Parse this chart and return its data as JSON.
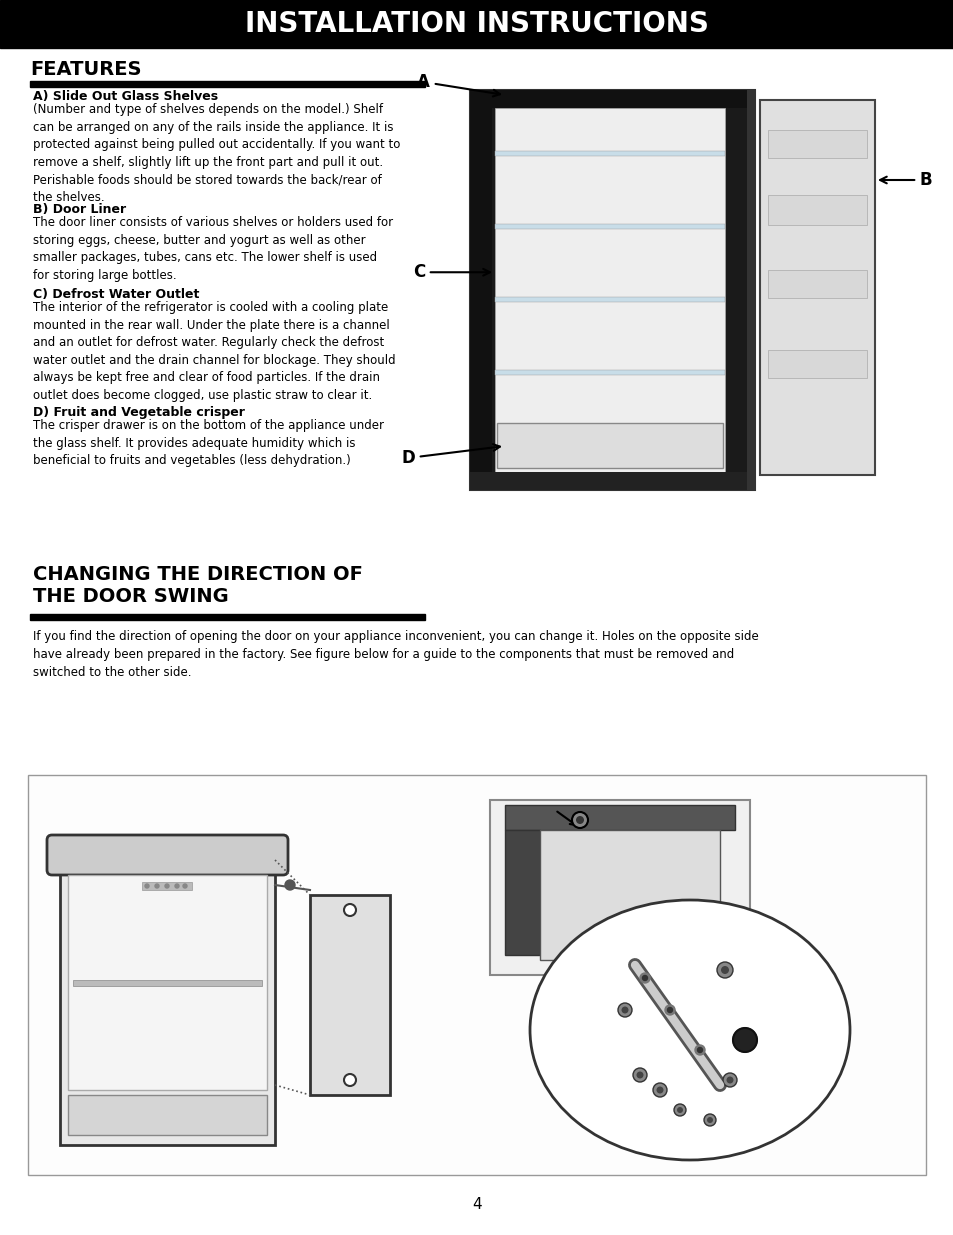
{
  "page_bg": "#ffffff",
  "header_bg": "#000000",
  "header_text": "INSTALLATION INSTRUCTIONS",
  "header_text_color": "#ffffff",
  "section1_title": "FEATURES",
  "features_items": [
    {
      "title": "A) Slide Out Glass Shelves",
      "body": "(Number and type of shelves depends on the model.) Shelf\ncan be arranged on any of the rails inside the appliance. It is\nprotected against being pulled out accidentally. If you want to\nremove a shelf, slightly lift up the front part and pull it out.\nPerishable foods should be stored towards the back/rear of\nthe shelves."
    },
    {
      "title": "B) Door Liner",
      "body": "The door liner consists of various shelves or holders used for\nstoring eggs, cheese, butter and yogurt as well as other\nsmaller packages, tubes, cans etc. The lower shelf is used\nfor storing large bottles."
    },
    {
      "title": "C) Defrost Water Outlet",
      "body": "The interior of the refrigerator is cooled with a cooling plate\nmounted in the rear wall. Under the plate there is a channel\nand an outlet for defrost water. Regularly check the defrost\nwater outlet and the drain channel for blockage. They should\nalways be kept free and clear of food particles. If the drain\noutlet does become clogged, use plastic straw to clear it."
    },
    {
      "title": "D) Fruit and Vegetable crisper",
      "body": "The crisper drawer is on the bottom of the appliance under\nthe glass shelf. It provides adequate humidity which is\nbeneficial to fruits and vegetables (less dehydration.)"
    }
  ],
  "section2_title_line1": "CHANGING THE DIRECTION OF",
  "section2_title_line2": "THE DOOR SWING",
  "section2_body": "If you find the direction of opening the door on your appliance inconvenient, you can change it. Holes on the opposite side\nhave already been prepared in the factory. See figure below for a guide to the components that must be removed and\nswitched to the other side.",
  "page_number": "4",
  "text_color": "#000000",
  "body_font_size": 8.5,
  "title_font_size": 9,
  "section_title_font_size": 14,
  "header_font_size": 20
}
